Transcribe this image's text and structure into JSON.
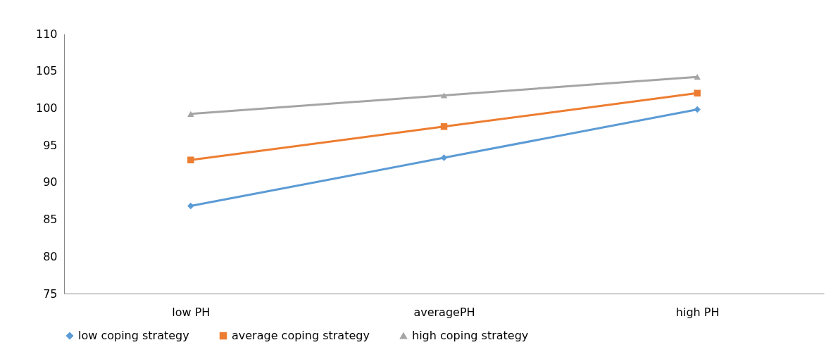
{
  "chart_data": {
    "type": "line",
    "categories": [
      "low PH",
      "averagePH",
      "high PH"
    ],
    "series": [
      {
        "name": "low coping strategy",
        "color": "#5b9bd5",
        "marker": "diamond",
        "values": [
          86.8,
          93.3,
          99.8
        ]
      },
      {
        "name": "average coping strategy",
        "color": "#ed7d31",
        "marker": "square",
        "values": [
          93.0,
          97.5,
          102.0
        ]
      },
      {
        "name": "high  coping strategy",
        "color": "#a5a5a5",
        "marker": "triangle",
        "values": [
          99.2,
          101.7,
          104.2
        ]
      }
    ],
    "ylim": [
      75,
      110
    ],
    "yticks": [
      75,
      80,
      85,
      90,
      95,
      100,
      105,
      110
    ],
    "grid": false,
    "legend": "bottom",
    "line_style": "solid"
  }
}
